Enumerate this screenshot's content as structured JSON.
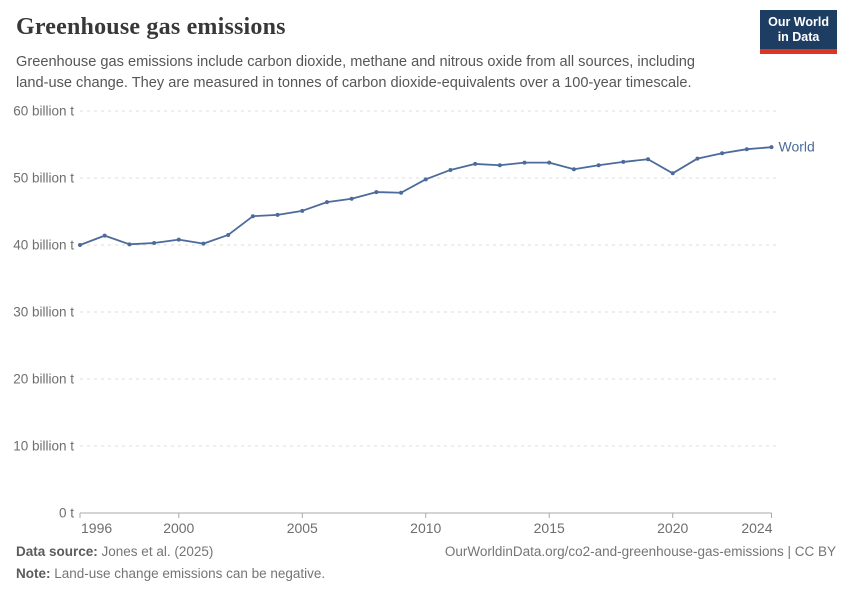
{
  "header": {
    "title": "Greenhouse gas emissions",
    "subtitle": "Greenhouse gas emissions include carbon dioxide, methane and nitrous oxide from all sources, including land-use change. They are measured in tonnes of carbon dioxide-equivalents over a 100-year timescale.",
    "logo": {
      "line1": "Our World",
      "line2": "in Data"
    }
  },
  "chart_data": {
    "type": "line",
    "title": "Greenhouse gas emissions",
    "xlabel": "",
    "ylabel": "",
    "unit": "billion tonnes of CO2-equivalents",
    "x": [
      1996,
      1997,
      1998,
      1999,
      2000,
      2001,
      2002,
      2003,
      2004,
      2005,
      2006,
      2007,
      2008,
      2009,
      2010,
      2011,
      2012,
      2013,
      2014,
      2015,
      2016,
      2017,
      2018,
      2019,
      2020,
      2021,
      2022,
      2023,
      2024
    ],
    "series": [
      {
        "name": "World",
        "color": "#4C6B9C",
        "values": [
          40.0,
          41.4,
          40.1,
          40.3,
          40.8,
          40.2,
          41.5,
          44.3,
          44.5,
          45.1,
          46.4,
          46.9,
          47.9,
          47.8,
          49.8,
          51.2,
          52.1,
          51.9,
          52.3,
          52.3,
          51.3,
          51.9,
          52.4,
          52.8,
          50.7,
          52.9,
          53.7,
          54.3,
          54.6
        ]
      }
    ],
    "ylim": [
      0,
      60
    ],
    "yticks": [
      0,
      10,
      20,
      30,
      40,
      50,
      60
    ],
    "ytick_labels": [
      "0 t",
      "10 billion t",
      "20 billion t",
      "30 billion t",
      "40 billion t",
      "50 billion t",
      "60 billion t"
    ],
    "xticks": [
      1996,
      2000,
      2005,
      2010,
      2015,
      2020,
      2024
    ],
    "xtick_labels": [
      "1996",
      "2000",
      "2005",
      "2010",
      "2015",
      "2020",
      "2024"
    ],
    "grid": "horizontal-dashed",
    "legend": "end-of-line-label"
  },
  "footer": {
    "datasource_label": "Data source:",
    "datasource_value": " Jones et al. (2025)",
    "note_label": "Note:",
    "note_value": " Land-use change emissions can be negative.",
    "link": "OurWorldinData.org/co2-and-greenhouse-gas-emissions | CC BY"
  },
  "colors": {
    "line": "#4C6B9C",
    "grid": "#dedede",
    "axis": "#a8a8a8",
    "tick_text": "#6e6e6e",
    "title_text": "#383838",
    "subtitle_text": "#565656",
    "footer_text": "#757575",
    "logo_bg": "#1d3d63",
    "logo_red": "#dc3523"
  }
}
